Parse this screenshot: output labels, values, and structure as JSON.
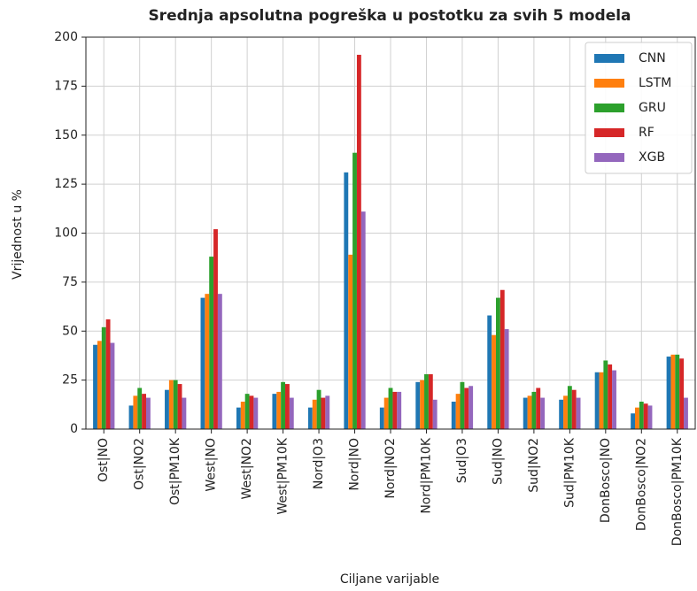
{
  "chart_data": {
    "type": "bar",
    "title": "Srednja apsolutna pogreška u postotku za svih 5 modela",
    "x_label": "Ciljane varijable",
    "y_label": "Vrijednost u %",
    "categories": [
      "Ost|NO",
      "Ost|NO2",
      "Ost|PM10K",
      "West|NO",
      "West|NO2",
      "West|PM10K",
      "Nord|O3",
      "Nord|NO",
      "Nord|NO2",
      "Nord|PM10K",
      "Sud|O3",
      "Sud|NO",
      "Sud|NO2",
      "Sud|PM10K",
      "DonBosco|NO",
      "DonBosco|NO2",
      "DonBosco|PM10K"
    ],
    "series": [
      {
        "name": "CNN",
        "color": "#1f77b4",
        "values": [
          43,
          12,
          20,
          67,
          11,
          18,
          11,
          131,
          11,
          24,
          14,
          58,
          16,
          15,
          29,
          8,
          37
        ]
      },
      {
        "name": "LSTM",
        "color": "#ff7f0e",
        "values": [
          45,
          17,
          25,
          69,
          14,
          19,
          15,
          89,
          16,
          25,
          18,
          48,
          17,
          17,
          29,
          11,
          38
        ]
      },
      {
        "name": "GRU",
        "color": "#2ca02c",
        "values": [
          52,
          21,
          25,
          88,
          18,
          24,
          20,
          141,
          21,
          28,
          24,
          67,
          19,
          22,
          35,
          14,
          38
        ]
      },
      {
        "name": "RF",
        "color": "#d62728",
        "values": [
          56,
          18,
          23,
          102,
          17,
          23,
          16,
          191,
          19,
          28,
          21,
          71,
          21,
          20,
          33,
          13,
          36
        ]
      },
      {
        "name": "XGB",
        "color": "#9467bd",
        "values": [
          44,
          16,
          16,
          69,
          16,
          16,
          17,
          111,
          19,
          15,
          22,
          51,
          16,
          16,
          30,
          12,
          16
        ]
      }
    ],
    "ylim": [
      0,
      200
    ],
    "yticks": [
      0,
      25,
      50,
      75,
      100,
      125,
      150,
      175,
      200
    ],
    "grid": true,
    "legend": "upper right"
  }
}
